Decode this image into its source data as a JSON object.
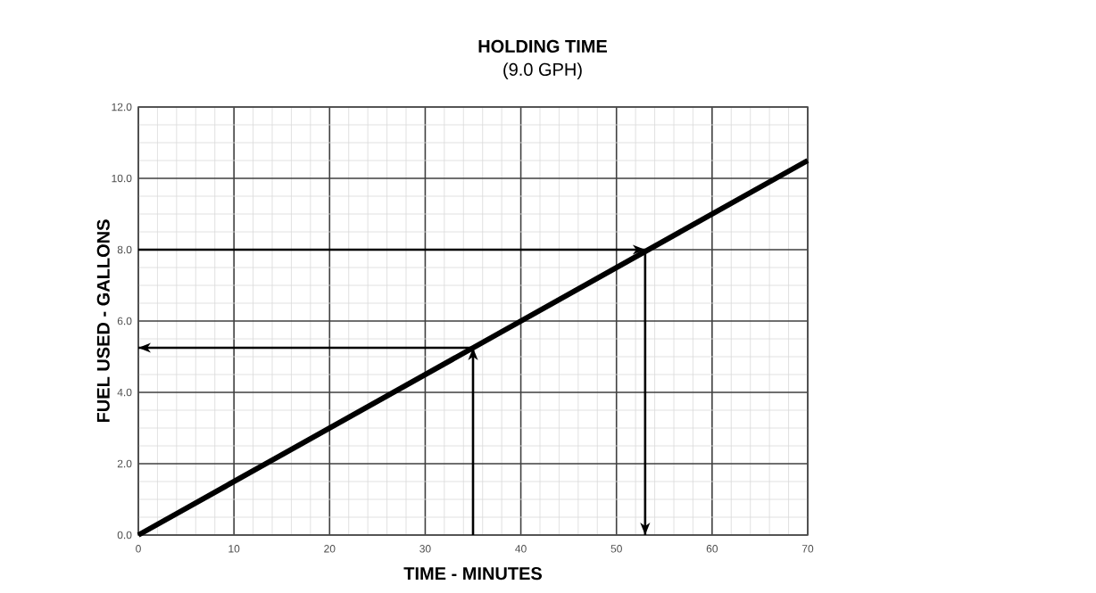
{
  "chart_data": {
    "type": "line",
    "title": "HOLDING TIME",
    "subtitle": "(9.0 GPH)",
    "xlabel": "TIME - MINUTES",
    "ylabel": "FUEL USED - GALLONS",
    "series": [
      {
        "color": "#000000",
        "x": [
          0,
          70
        ],
        "values": [
          0,
          10.5
        ]
      },
      {
        "color": "#000000",
        "x": [
          0,
          53
        ],
        "values": [
          8,
          8
        ]
      },
      {
        "color": "#000000",
        "x": [
          53,
          53
        ],
        "values": [
          8,
          0
        ]
      },
      {
        "color": "#000000",
        "x": [
          35,
          35
        ],
        "values": [
          0,
          5.25
        ]
      },
      {
        "color": "#000000",
        "x": [
          35,
          0
        ],
        "values": [
          5.25,
          5.25
        ]
      }
    ],
    "xlim": [
      0,
      70
    ],
    "ylim": [
      0,
      12
    ],
    "xticks": [
      0,
      10,
      20,
      30,
      40,
      50,
      60,
      70
    ],
    "yticks": [
      {
        "value": 0,
        "label": "0.0"
      },
      {
        "value": 2,
        "label": "2.0"
      },
      {
        "value": 4,
        "label": "4.0"
      },
      {
        "value": 6,
        "label": "6.0"
      },
      {
        "value": 8,
        "label": "8.0"
      },
      {
        "value": 10,
        "label": "10.0"
      },
      {
        "value": 12,
        "label": "12.0"
      }
    ],
    "grid": true,
    "marker": "none",
    "line_style": "solid"
  }
}
